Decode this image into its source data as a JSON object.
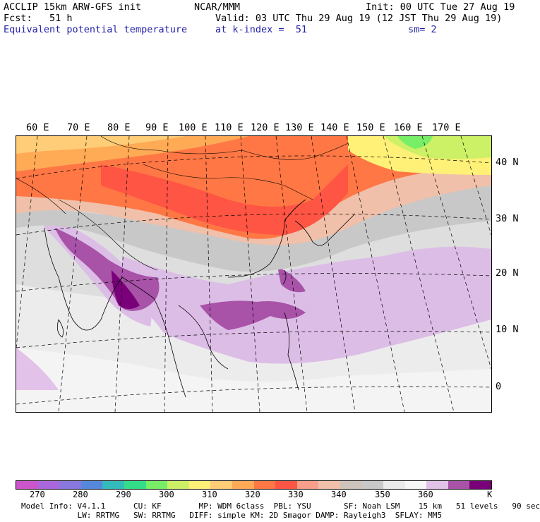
{
  "header": {
    "model": "ACCLIP 15km ARW-GFS init",
    "org": "NCAR/MMM",
    "init": "Init: 00 UTC Tue 27 Aug 19",
    "fcst": "Fcst:   51 h",
    "valid": "Valid: 03 UTC Thu 29 Aug 19 (12 JST Thu 29 Aug 19)",
    "field": "Equivalent potential temperature",
    "level": "at k-index =  51",
    "smooth": "sm= 2"
  },
  "longitude_labels": [
    "60 E",
    "70 E",
    "80 E",
    "90 E",
    "100 E",
    "110 E",
    "120 E",
    "130 E",
    "140 E",
    "150 E",
    "160 E",
    "170 E"
  ],
  "latitude_labels": [
    "40 N",
    "30 N",
    "20 N",
    "10 N",
    "0"
  ],
  "colorbar": {
    "unit": "K",
    "labels": [
      "270",
      "280",
      "290",
      "300",
      "310",
      "320",
      "330",
      "340",
      "350",
      "360"
    ],
    "colors": [
      "#cc55cc",
      "#aa66dd",
      "#8877dd",
      "#5588dd",
      "#33bbbb",
      "#33dd88",
      "#77ee66",
      "#ccf066",
      "#fff077",
      "#ffcc77",
      "#ffaa55",
      "#ff7744",
      "#ff5544",
      "#f79f8a",
      "#f0c0aa",
      "#cfc4bb",
      "#c8c8c8",
      "#ebebeb",
      "#f7f7f7",
      "#e3c2ea",
      "#a852a8",
      "#7a007a"
    ]
  },
  "footer": {
    "line1": "Model Info: V4.1.1      CU: KF        MP: WDM 6class  PBL: YSU       SF: Noah LSM    15 km   51 levels   90 sec",
    "line2": "            LW: RRTMG   SW: RRTMG   DIFF: simple KM: 2D Smagor DAMP: Rayleigh3  SFLAY: MM5"
  }
}
